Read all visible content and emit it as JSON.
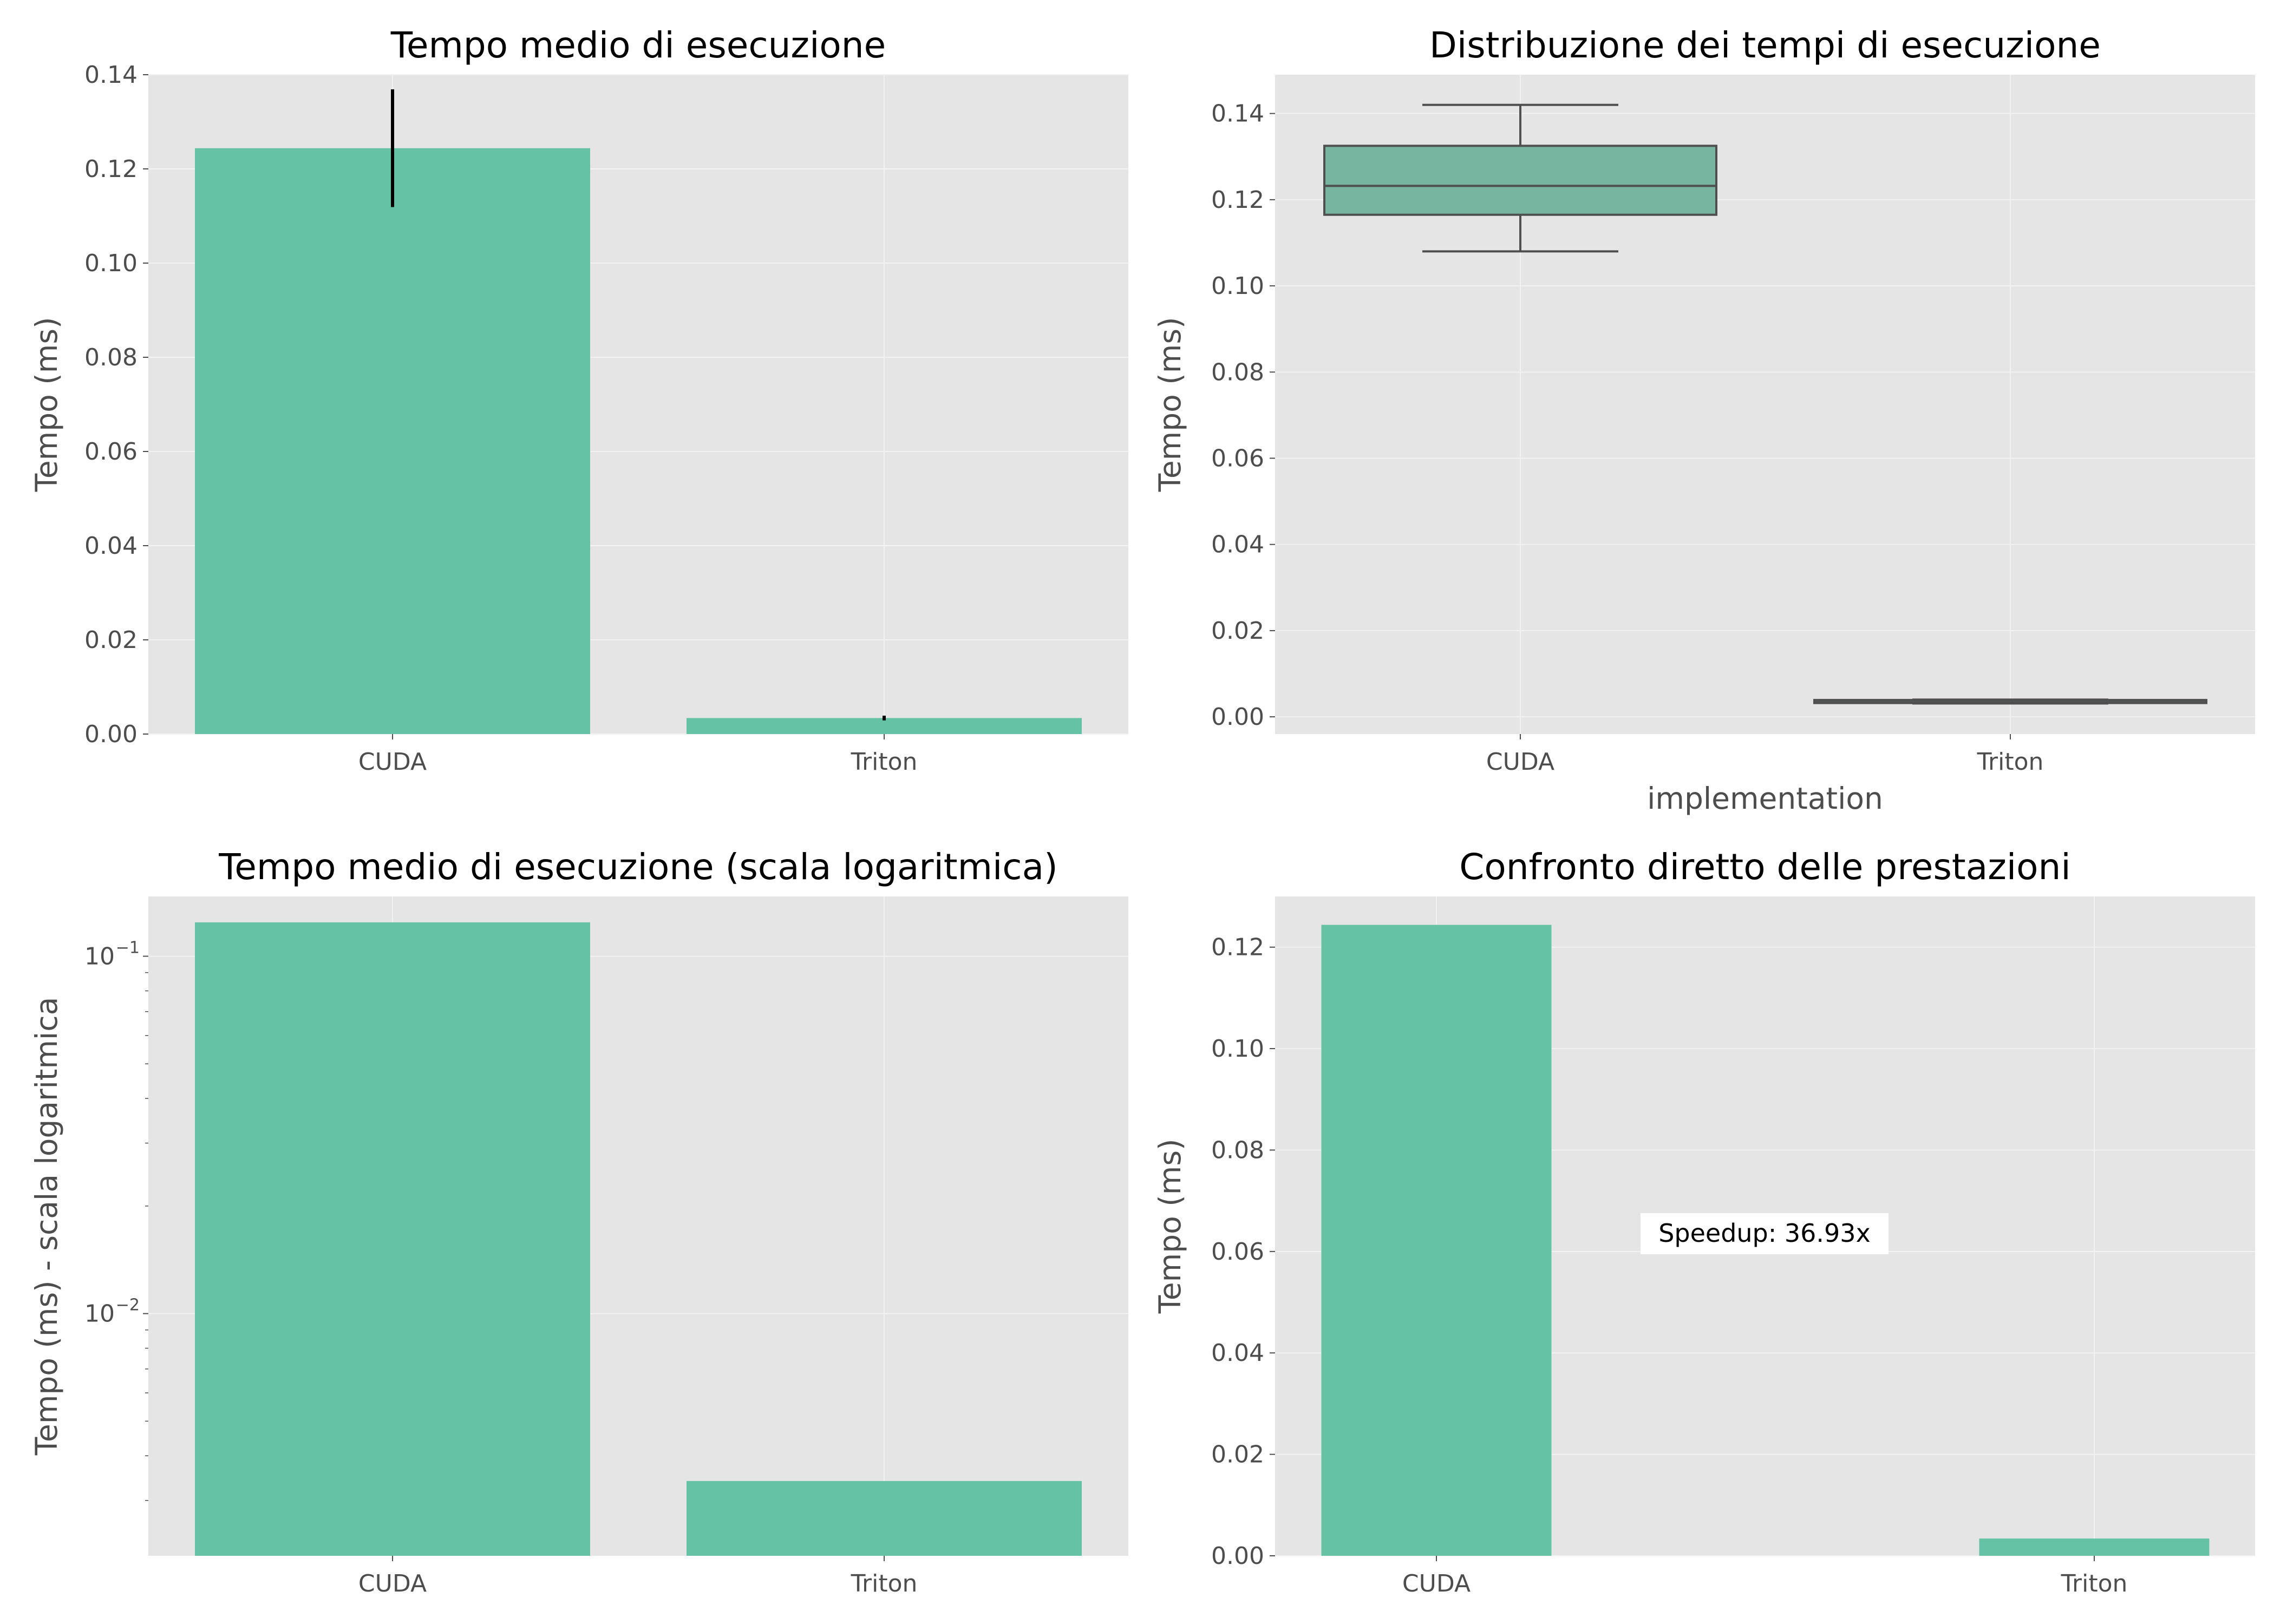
{
  "colors": {
    "bar": "#66c2a5",
    "box": "#77b5a0",
    "box_line": "#4f4f4f",
    "error_bar": "#000000",
    "panel_bg": "#e5e5e5",
    "grid": "#f2f2f2"
  },
  "chart_data": [
    {
      "type": "bar",
      "title": "Tempo medio di esecuzione",
      "xlabel": "",
      "ylabel": "Tempo (ms)",
      "categories": [
        "CUDA",
        "Triton"
      ],
      "values": [
        0.1244,
        0.0034
      ],
      "error": [
        0.0125,
        0.0005
      ],
      "ylim": [
        0,
        0.14
      ],
      "yticks": [
        "0.00",
        "0.02",
        "0.04",
        "0.06",
        "0.08",
        "0.10",
        "0.12",
        "0.14"
      ],
      "grid": true
    },
    {
      "type": "box",
      "title": "Distribuzione dei tempi di esecuzione",
      "xlabel": "implementation",
      "ylabel": "Tempo (ms)",
      "categories": [
        "CUDA",
        "Triton"
      ],
      "boxes": [
        {
          "min": 0.108,
          "q1": 0.1165,
          "median": 0.1232,
          "q3": 0.1325,
          "max": 0.142
        },
        {
          "min": 0.0031,
          "q1": 0.0032,
          "median": 0.0034,
          "q3": 0.0039,
          "max": 0.004
        }
      ],
      "ylim": [
        -0.004,
        0.149
      ],
      "yticks": [
        "0.00",
        "0.02",
        "0.04",
        "0.06",
        "0.08",
        "0.10",
        "0.12",
        "0.14"
      ],
      "grid": true
    },
    {
      "type": "bar",
      "title": "Tempo medio di esecuzione (scala logaritmica)",
      "xlabel": "",
      "ylabel": "Tempo (ms) - scala logaritmica",
      "categories": [
        "CUDA",
        "Triton"
      ],
      "values": [
        0.1244,
        0.0034
      ],
      "yscale": "log",
      "ylim": [
        0.0021,
        0.147
      ],
      "yticks": [
        {
          "base": "10",
          "exp": "−1"
        },
        {
          "base": "10",
          "exp": "−2"
        }
      ],
      "grid": true
    },
    {
      "type": "bar",
      "title": "Confronto diretto delle prestazioni",
      "xlabel": "",
      "ylabel": "Tempo (ms)",
      "categories": [
        "CUDA",
        "Triton"
      ],
      "values": [
        0.1244,
        0.0034
      ],
      "ylim": [
        0,
        0.13
      ],
      "yticks": [
        "0.00",
        "0.02",
        "0.04",
        "0.06",
        "0.08",
        "0.10",
        "0.12"
      ],
      "annotation": "Speedup: 36.93x",
      "grid": true
    }
  ]
}
